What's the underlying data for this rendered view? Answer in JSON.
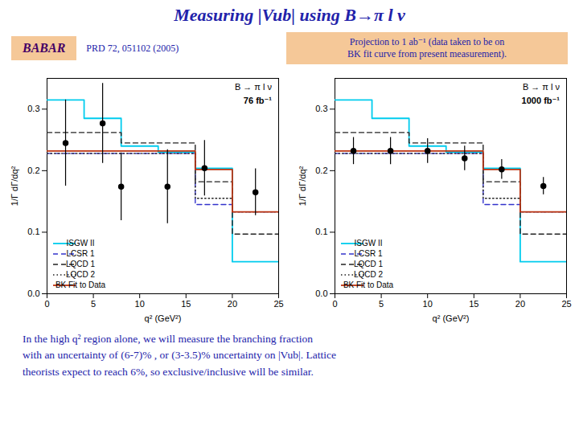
{
  "title": "Measuring |Vub| using B→π l ν",
  "annotations": [
    "BABAR",
    "PRD 72, 051102 (2005)",
    "Projection to 1 ab⁻¹ (data taken to be on\nBK fit curve  from present measurement).",
    "In the high q² region alone, we will measure the branching fraction\nwith an uncertainty of (6-7)% , or (3-3.5)% uncertainty on |Vub|. Lattice\ntheorists expect to reach 6%, so exclusive/inclusive will be similar."
  ],
  "chart_data": [
    {
      "type": "step",
      "legend": "lower left",
      "grid": false,
      "x_label": "q² (GeV²)",
      "y_label": "1/Γ dΓ/dq²",
      "annotations": [
        "B → π l ν",
        "76 fb⁻¹"
      ],
      "xlim": [
        0,
        25
      ],
      "ylim": [
        0,
        0.35
      ],
      "xticks": [
        0,
        5,
        10,
        15,
        20,
        25
      ],
      "yticks": [
        {
          "value": 0,
          "label": "0.0"
        },
        0.1,
        0.2,
        0.3
      ],
      "bins": [
        0,
        4,
        8,
        12,
        16,
        20,
        25
      ],
      "series": [
        {
          "name": "ISGW II",
          "color": "#00ccee",
          "line_style": "solid",
          "values": [
            0.315,
            0.285,
            0.24,
            0.23,
            0.204,
            0.052
          ]
        },
        {
          "name": "LCSR 1",
          "color": "#3333cc",
          "line_style": "dashed",
          "values": [
            0.228,
            0.228,
            0.228,
            0.228,
            0.145,
            0.133
          ]
        },
        {
          "name": "LQCD 1",
          "color": "#222222",
          "line_style": "dashed",
          "values": [
            0.262,
            0.262,
            0.245,
            0.245,
            0.182,
            0.097
          ]
        },
        {
          "name": "LQCD 2",
          "color": "#222222",
          "line_style": "dotted",
          "values": [
            0.228,
            0.228,
            0.228,
            0.228,
            0.155,
            0.133
          ]
        },
        {
          "name": "BK Fit to Data",
          "color": "#bb3311",
          "line_style": "solid",
          "values": [
            0.232,
            0.232,
            0.232,
            0.232,
            0.202,
            0.133
          ]
        },
        {
          "type": "scatter",
          "marker": "circle",
          "color": "#000000",
          "x": [
            2.0,
            6.0,
            8.0,
            13.0,
            17.0,
            22.5
          ],
          "values": [
            0.245,
            0.277,
            0.174,
            0.174,
            0.204,
            0.165
          ],
          "yerr_lo": [
            0.07,
            0.065,
            0.055,
            0.06,
            0.045,
            0.038
          ],
          "yerr_hi": [
            0.07,
            0.065,
            0.055,
            0.06,
            0.045,
            0.038
          ]
        }
      ]
    },
    {
      "type": "step",
      "legend": "lower left",
      "grid": false,
      "x_label": "q² (GeV²)",
      "y_label": "1/Γ dΓ/dq²",
      "annotations": [
        "B → π l ν",
        "1000 fb⁻¹"
      ],
      "xlim": [
        0,
        25
      ],
      "ylim": [
        0,
        0.35
      ],
      "xticks": [
        0,
        5,
        10,
        15,
        20,
        25
      ],
      "yticks": [
        {
          "value": 0,
          "label": "0.0"
        },
        0.1,
        0.2,
        0.3
      ],
      "bins": [
        0,
        4,
        8,
        12,
        16,
        20,
        25
      ],
      "series": [
        {
          "name": "ISGW II",
          "color": "#00ccee",
          "line_style": "solid",
          "values": [
            0.315,
            0.285,
            0.24,
            0.23,
            0.204,
            0.052
          ]
        },
        {
          "name": "LCSR 1",
          "color": "#3333cc",
          "line_style": "dashed",
          "values": [
            0.228,
            0.228,
            0.228,
            0.228,
            0.145,
            0.133
          ]
        },
        {
          "name": "LQCD 1",
          "color": "#222222",
          "line_style": "dashed",
          "values": [
            0.262,
            0.262,
            0.245,
            0.245,
            0.182,
            0.097
          ]
        },
        {
          "name": "LQCD 2",
          "color": "#222222",
          "line_style": "dotted",
          "values": [
            0.228,
            0.228,
            0.228,
            0.228,
            0.155,
            0.133
          ]
        },
        {
          "name": "BK Fit to Data",
          "color": "#bb3311",
          "line_style": "solid",
          "values": [
            0.232,
            0.232,
            0.232,
            0.232,
            0.202,
            0.133
          ]
        },
        {
          "type": "scatter",
          "marker": "circle",
          "color": "#000000",
          "x": [
            2.0,
            6.0,
            10.0,
            14.0,
            18.0,
            22.5
          ],
          "values": [
            0.232,
            0.232,
            0.232,
            0.22,
            0.202,
            0.175
          ],
          "yerr_lo": [
            0.022,
            0.022,
            0.02,
            0.02,
            0.016,
            0.014
          ],
          "yerr_hi": [
            0.022,
            0.022,
            0.02,
            0.02,
            0.016,
            0.014
          ]
        }
      ]
    }
  ]
}
